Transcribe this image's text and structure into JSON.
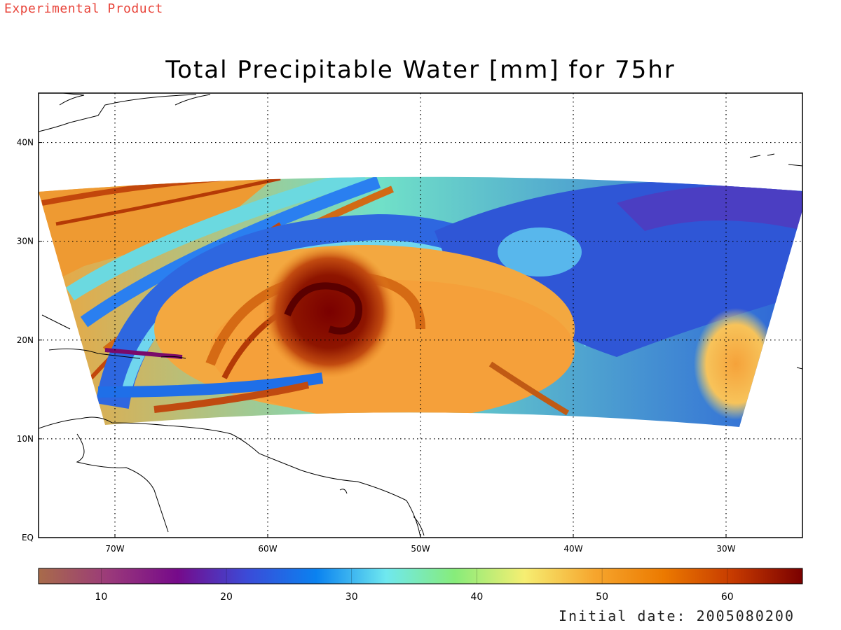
{
  "watermark": "Experimental Product",
  "title": "Total Precipitable Water [mm] for 75hr",
  "footer": "Initial date: 2005080200",
  "map": {
    "lon_range": [
      -75,
      -25
    ],
    "lat_range": [
      0,
      45
    ],
    "lon_ticks": [
      {
        "value": -70,
        "label": "70W"
      },
      {
        "value": -60,
        "label": "60W"
      },
      {
        "value": -50,
        "label": "50W"
      },
      {
        "value": -40,
        "label": "40W"
      },
      {
        "value": -30,
        "label": "30W"
      }
    ],
    "lat_ticks": [
      {
        "value": 0,
        "label": "EQ"
      },
      {
        "value": 10,
        "label": "10N"
      },
      {
        "value": 20,
        "label": "20N"
      },
      {
        "value": 30,
        "label": "30N"
      },
      {
        "value": 40,
        "label": "40N"
      }
    ],
    "gridlines": "dotted",
    "hurricane_center": {
      "lon": -56,
      "lat": 23
    },
    "colorbar": {
      "range": [
        5,
        66
      ],
      "ticks": [
        10,
        20,
        30,
        40,
        50,
        60
      ],
      "colors": [
        "#a86b4a",
        "#9b3a7a",
        "#760a8a",
        "#3b4bd8",
        "#0a82f0",
        "#6fe8ef",
        "#87ec7a",
        "#f6ee72",
        "#f6a62e",
        "#ec7a00",
        "#c63a00",
        "#7a0000"
      ]
    }
  }
}
